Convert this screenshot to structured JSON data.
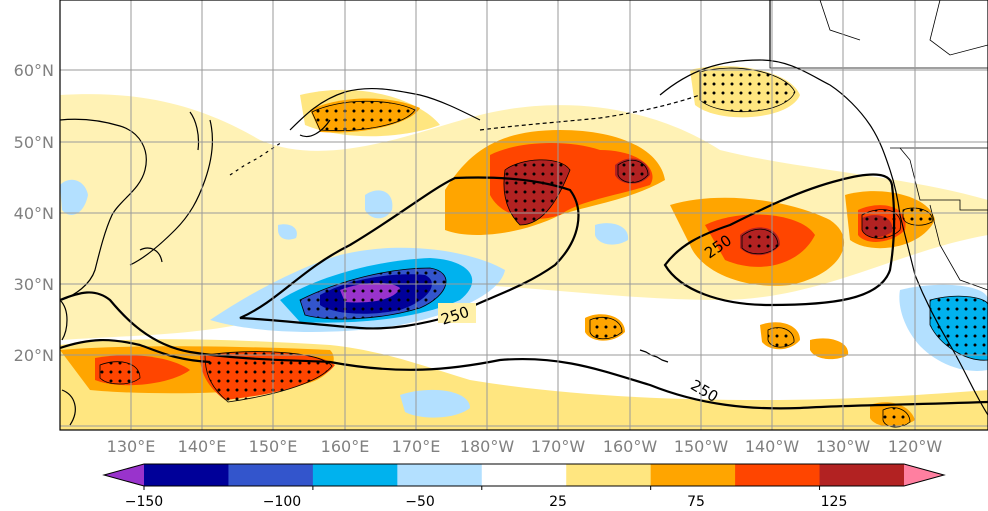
{
  "map": {
    "lat_labels": [
      "60°N",
      "50°N",
      "40°N",
      "30°N",
      "20°N"
    ],
    "lon_labels": [
      "130°E",
      "140°E",
      "150°E",
      "160°E",
      "170°E",
      "180°W",
      "170°W",
      "160°W",
      "150°W",
      "140°W",
      "130°W",
      "120°W"
    ],
    "contour_labels": [
      "250",
      "250",
      "250"
    ]
  },
  "colorbar": {
    "tick_labels": [
      "−150",
      "−100",
      "−50",
      "25",
      "75",
      "125"
    ],
    "colors": [
      "#9933cc",
      "#000099",
      "#3355cc",
      "#00b2ee",
      "#b3e0ff",
      "#ffffff",
      "#ffe680",
      "#ffa500",
      "#ff4500",
      "#b22222",
      "#ff7fa0"
    ],
    "extend": "both"
  }
}
